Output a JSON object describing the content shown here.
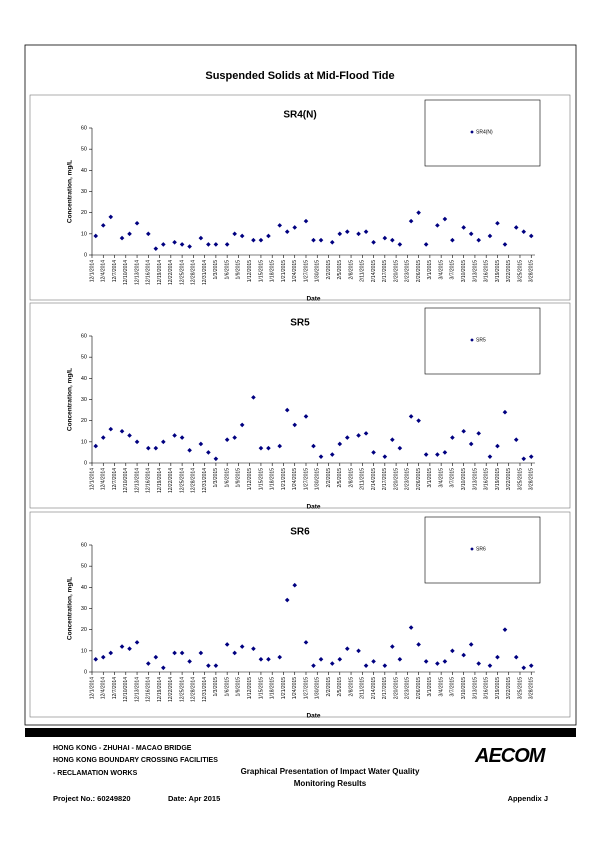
{
  "title": "Suspended Solids at Mid-Flood Tide",
  "chart_data": [
    {
      "type": "scatter",
      "title": "SR4(N)",
      "x_label": "Date",
      "y_label": "Concentration, mg/L",
      "x": [
        "12/2/2014",
        "12/4/2014",
        "12/6/2014",
        "12/9/2014",
        "12/11/2014",
        "12/13/2014",
        "12/16/2014",
        "12/18/2014",
        "12/20/2014",
        "12/23/2014",
        "12/25/2014",
        "12/27/2014",
        "12/30/2014",
        "1/1/2015",
        "1/3/2015",
        "1/6/2015",
        "1/8/2015",
        "1/10/2015",
        "1/13/2015",
        "1/15/2015",
        "1/17/2015",
        "1/20/2015",
        "1/22/2015",
        "1/24/2015",
        "1/27/2015",
        "1/29/2015",
        "1/31/2015",
        "2/3/2015",
        "2/5/2015",
        "2/7/2015",
        "2/10/2015",
        "2/12/2015",
        "2/14/2015",
        "2/17/2015",
        "2/19/2015",
        "2/21/2015",
        "2/24/2015",
        "2/26/2015",
        "2/28/2015",
        "3/3/2015",
        "3/5/2015",
        "3/7/2015",
        "3/10/2015",
        "3/12/2015",
        "3/14/2015",
        "3/17/2015",
        "3/19/2015",
        "3/21/2015",
        "3/24/2015",
        "3/26/2015",
        "3/28/2015"
      ],
      "series": [
        {
          "name": "SR4(N)",
          "color": "#000080",
          "values": [
            9,
            14,
            18,
            8,
            10,
            15,
            10,
            3,
            5,
            6,
            5,
            4,
            8,
            5,
            5,
            5,
            10,
            9,
            7,
            7,
            9,
            14,
            11,
            13,
            16,
            7,
            7,
            6,
            10,
            11,
            10,
            11,
            6,
            8,
            7,
            5,
            16,
            20,
            5,
            14,
            17,
            7,
            13,
            10,
            7,
            9,
            15,
            5,
            13,
            11,
            9
          ]
        }
      ],
      "xlim": [
        "12/1/2014",
        "3/29/2015"
      ],
      "xticks": [
        "12/1/2014",
        "12/4/2014",
        "12/7/2014",
        "12/10/2014",
        "12/13/2014",
        "12/16/2014",
        "12/19/2014",
        "12/22/2014",
        "12/25/2014",
        "12/28/2014",
        "12/31/2014",
        "1/3/2015",
        "1/6/2015",
        "1/9/2015",
        "1/12/2015",
        "1/15/2015",
        "1/18/2015",
        "1/21/2015",
        "1/24/2015",
        "1/27/2015",
        "1/30/2015",
        "2/2/2015",
        "2/5/2015",
        "2/8/2015",
        "2/11/2015",
        "2/14/2015",
        "2/17/2015",
        "2/20/2015",
        "2/23/2015",
        "2/26/2015",
        "3/1/2015",
        "3/4/2015",
        "3/7/2015",
        "3/10/2015",
        "3/13/2015",
        "3/16/2015",
        "3/19/2015",
        "3/22/2015",
        "3/25/2015",
        "3/28/2015"
      ],
      "ylim": [
        0,
        60
      ],
      "yticks": [
        0,
        10,
        20,
        30,
        40,
        50,
        60
      ],
      "legend": "top-right"
    },
    {
      "type": "scatter",
      "title": "SR5",
      "x_label": "Date",
      "y_label": "Concentration, mg/L",
      "x": [
        "12/2/2014",
        "12/4/2014",
        "12/6/2014",
        "12/9/2014",
        "12/11/2014",
        "12/13/2014",
        "12/16/2014",
        "12/18/2014",
        "12/20/2014",
        "12/23/2014",
        "12/25/2014",
        "12/27/2014",
        "12/30/2014",
        "1/1/2015",
        "1/3/2015",
        "1/6/2015",
        "1/8/2015",
        "1/10/2015",
        "1/13/2015",
        "1/15/2015",
        "1/17/2015",
        "1/20/2015",
        "1/22/2015",
        "1/24/2015",
        "1/27/2015",
        "1/29/2015",
        "1/31/2015",
        "2/3/2015",
        "2/5/2015",
        "2/7/2015",
        "2/10/2015",
        "2/12/2015",
        "2/14/2015",
        "2/17/2015",
        "2/19/2015",
        "2/21/2015",
        "2/24/2015",
        "2/26/2015",
        "2/28/2015",
        "3/3/2015",
        "3/5/2015",
        "3/7/2015",
        "3/10/2015",
        "3/12/2015",
        "3/14/2015",
        "3/17/2015",
        "3/19/2015",
        "3/21/2015",
        "3/24/2015",
        "3/26/2015",
        "3/28/2015"
      ],
      "series": [
        {
          "name": "SR5",
          "color": "#000080",
          "values": [
            8,
            12,
            16,
            15,
            13,
            10,
            7,
            7,
            10,
            13,
            12,
            6,
            9,
            5,
            2,
            11,
            12,
            18,
            31,
            7,
            7,
            8,
            25,
            18,
            22,
            8,
            3,
            4,
            9,
            12,
            13,
            14,
            5,
            3,
            11,
            7,
            22,
            20,
            4,
            4,
            5,
            12,
            15,
            9,
            14,
            3,
            8,
            24,
            11,
            2,
            3
          ]
        }
      ],
      "xlim": [
        "12/1/2014",
        "3/29/2015"
      ],
      "xticks": [
        "12/1/2014",
        "12/4/2014",
        "12/7/2014",
        "12/10/2014",
        "12/13/2014",
        "12/16/2014",
        "12/19/2014",
        "12/22/2014",
        "12/25/2014",
        "12/28/2014",
        "12/31/2014",
        "1/3/2015",
        "1/6/2015",
        "1/9/2015",
        "1/12/2015",
        "1/15/2015",
        "1/18/2015",
        "1/21/2015",
        "1/24/2015",
        "1/27/2015",
        "1/30/2015",
        "2/2/2015",
        "2/5/2015",
        "2/8/2015",
        "2/11/2015",
        "2/14/2015",
        "2/17/2015",
        "2/20/2015",
        "2/23/2015",
        "2/26/2015",
        "3/1/2015",
        "3/4/2015",
        "3/7/2015",
        "3/10/2015",
        "3/13/2015",
        "3/16/2015",
        "3/19/2015",
        "3/22/2015",
        "3/25/2015",
        "3/28/2015"
      ],
      "ylim": [
        0,
        60
      ],
      "yticks": [
        0,
        10,
        20,
        30,
        40,
        50,
        60
      ],
      "legend": "top-right"
    },
    {
      "type": "scatter",
      "title": "SR6",
      "x_label": "Date",
      "y_label": "Concentration, mg/L",
      "x": [
        "12/2/2014",
        "12/4/2014",
        "12/6/2014",
        "12/9/2014",
        "12/11/2014",
        "12/13/2014",
        "12/16/2014",
        "12/18/2014",
        "12/20/2014",
        "12/23/2014",
        "12/25/2014",
        "12/27/2014",
        "12/30/2014",
        "1/1/2015",
        "1/3/2015",
        "1/6/2015",
        "1/8/2015",
        "1/10/2015",
        "1/13/2015",
        "1/15/2015",
        "1/17/2015",
        "1/20/2015",
        "1/22/2015",
        "1/24/2015",
        "1/27/2015",
        "1/29/2015",
        "1/31/2015",
        "2/3/2015",
        "2/5/2015",
        "2/7/2015",
        "2/10/2015",
        "2/12/2015",
        "2/14/2015",
        "2/17/2015",
        "2/19/2015",
        "2/21/2015",
        "2/24/2015",
        "2/26/2015",
        "2/28/2015",
        "3/3/2015",
        "3/5/2015",
        "3/7/2015",
        "3/10/2015",
        "3/12/2015",
        "3/14/2015",
        "3/17/2015",
        "3/19/2015",
        "3/21/2015",
        "3/24/2015",
        "3/26/2015",
        "3/28/2015"
      ],
      "series": [
        {
          "name": "SR6",
          "color": "#000080",
          "values": [
            6,
            7,
            9,
            12,
            11,
            14,
            4,
            7,
            2,
            9,
            9,
            5,
            9,
            3,
            3,
            13,
            9,
            12,
            11,
            6,
            6,
            7,
            34,
            41,
            14,
            3,
            6,
            4,
            6,
            11,
            10,
            3,
            5,
            3,
            12,
            6,
            21,
            13,
            5,
            4,
            5,
            10,
            8,
            13,
            4,
            3,
            7,
            20,
            7,
            2,
            3
          ]
        }
      ],
      "xlim": [
        "12/1/2014",
        "3/29/2015"
      ],
      "xticks": [
        "12/1/2014",
        "12/4/2014",
        "12/7/2014",
        "12/10/2014",
        "12/13/2014",
        "12/16/2014",
        "12/19/2014",
        "12/22/2014",
        "12/25/2014",
        "12/28/2014",
        "12/31/2014",
        "1/3/2015",
        "1/6/2015",
        "1/9/2015",
        "1/12/2015",
        "1/15/2015",
        "1/18/2015",
        "1/21/2015",
        "1/24/2015",
        "1/27/2015",
        "1/30/2015",
        "2/2/2015",
        "2/5/2015",
        "2/8/2015",
        "2/11/2015",
        "2/14/2015",
        "2/17/2015",
        "2/20/2015",
        "2/23/2015",
        "2/26/2015",
        "3/1/2015",
        "3/4/2015",
        "3/7/2015",
        "3/10/2015",
        "3/13/2015",
        "3/16/2015",
        "3/19/2015",
        "3/22/2015",
        "3/25/2015",
        "3/28/2015"
      ],
      "ylim": [
        0,
        60
      ],
      "yticks": [
        0,
        10,
        20,
        30,
        40,
        50,
        60
      ],
      "legend": "top-right"
    }
  ],
  "footer": {
    "project_lines": [
      "HONG KONG - ZHUHAI - MACAO BRIDGE",
      "HONG KONG BOUNDARY CROSSING FACILITIES",
      "- RECLAMATION WORKS"
    ],
    "logo": "AECOM",
    "caption_lines": [
      "Graphical Presentation of Impact Water Quality",
      "Monitoring Results"
    ],
    "project_no": "Project No.: 60249820",
    "date": "Date: Apr 2015",
    "appendix": "Appendix J"
  }
}
